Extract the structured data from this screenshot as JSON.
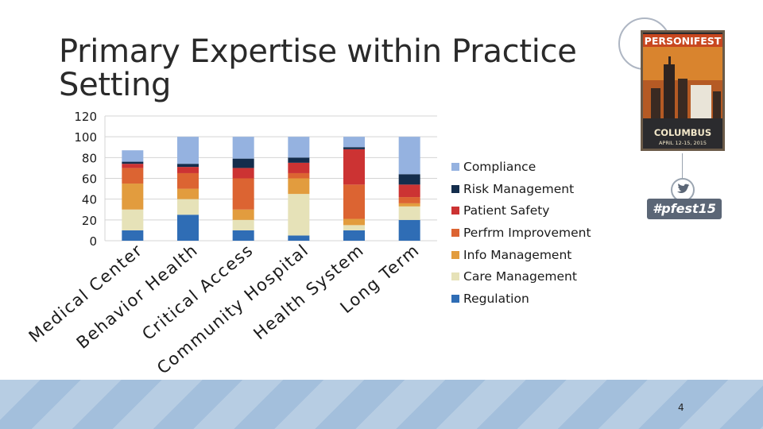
{
  "slide": {
    "title": "Primary Expertise within Practice Setting",
    "page_number": "4"
  },
  "logo": {
    "title": "PERSONIFEST",
    "city": "COLUMBUS",
    "dates": "APRIL 12-15, 2015",
    "hashtag": "#pfest15"
  },
  "chart_data": {
    "type": "bar",
    "stacked": true,
    "title": "",
    "xlabel": "",
    "ylabel": "",
    "ylim": [
      0,
      120
    ],
    "yticks": [
      0,
      20,
      40,
      60,
      80,
      100,
      120
    ],
    "ytick_labels": [
      "0",
      "20",
      "40",
      "60",
      "80",
      "100",
      "120"
    ],
    "grid": true,
    "legend_position": "right",
    "categories": [
      "Medical Center",
      "Behavior Health",
      "Critical Access",
      "Community Hospital",
      "Health System",
      "Long Term"
    ],
    "series": [
      {
        "name": "Regulation",
        "color": "#2f6db5",
        "values": [
          10,
          25,
          10,
          5,
          10,
          20
        ]
      },
      {
        "name": "Care Management",
        "color": "#e6e2b8",
        "values": [
          20,
          15,
          10,
          40,
          5,
          13
        ]
      },
      {
        "name": "Info Management",
        "color": "#e29c3e",
        "values": [
          25,
          10,
          10,
          15,
          6,
          3
        ]
      },
      {
        "name": "Perfrm Improvement",
        "color": "#dc6432",
        "values": [
          15,
          15,
          30,
          5,
          33,
          6
        ]
      },
      {
        "name": "Patient Safety",
        "color": "#cc3333",
        "values": [
          4,
          6,
          10,
          10,
          34,
          12
        ]
      },
      {
        "name": "Risk Management",
        "color": "#142d4c",
        "values": [
          2,
          3,
          9,
          5,
          2,
          10
        ]
      },
      {
        "name": "Compliance",
        "color": "#95b2e0",
        "values": [
          11,
          26,
          21,
          20,
          10,
          36
        ]
      }
    ]
  }
}
